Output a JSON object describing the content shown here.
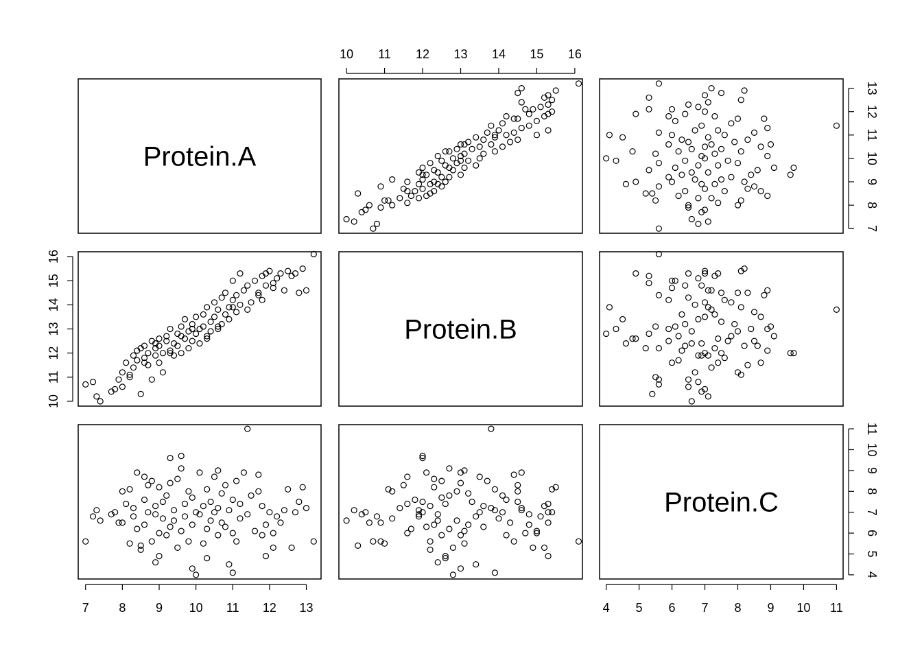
{
  "chart_data": {
    "type": "scatter",
    "variables": [
      "Protein.A",
      "Protein.B",
      "Protein.C"
    ],
    "axes": {
      "Protein.A": {
        "range": [
          6.8,
          13.4
        ],
        "ticks": [
          "7",
          "8",
          "9",
          "10",
          "11",
          "12",
          "13"
        ]
      },
      "Protein.B": {
        "range": [
          9.8,
          16.2
        ],
        "ticks": [
          "10",
          "11",
          "12",
          "13",
          "14",
          "15",
          "16"
        ]
      },
      "Protein.C": {
        "range": [
          3.8,
          11.2
        ],
        "ticks": [
          "4",
          "5",
          "6",
          "7",
          "8",
          "9",
          "10",
          "11"
        ]
      }
    },
    "grid": false,
    "points": [
      [
        7.0,
        10.7,
        5.6
      ],
      [
        7.2,
        10.8,
        6.8
      ],
      [
        7.3,
        10.2,
        7.1
      ],
      [
        7.4,
        10.0,
        6.6
      ],
      [
        7.7,
        10.4,
        6.9
      ],
      [
        7.8,
        10.5,
        7.0
      ],
      [
        7.9,
        10.9,
        6.5
      ],
      [
        8.0,
        11.2,
        8.0
      ],
      [
        8.0,
        10.6,
        6.5
      ],
      [
        8.1,
        11.6,
        7.4
      ],
      [
        8.2,
        11.0,
        5.5
      ],
      [
        8.3,
        11.9,
        6.8
      ],
      [
        8.3,
        11.4,
        7.2
      ],
      [
        8.4,
        12.1,
        8.9
      ],
      [
        8.4,
        11.7,
        6.2
      ],
      [
        8.5,
        10.3,
        5.4
      ],
      [
        8.5,
        12.2,
        5.2
      ],
      [
        8.6,
        11.8,
        7.6
      ],
      [
        8.6,
        12.3,
        6.4
      ],
      [
        8.7,
        11.5,
        8.3
      ],
      [
        8.7,
        12.0,
        7.0
      ],
      [
        8.8,
        10.9,
        5.6
      ],
      [
        8.8,
        12.5,
        8.5
      ],
      [
        8.9,
        11.9,
        6.9
      ],
      [
        8.9,
        12.2,
        7.3
      ],
      [
        9.0,
        12.6,
        4.9
      ],
      [
        9.0,
        11.6,
        6.0
      ],
      [
        9.0,
        12.3,
        8.2
      ],
      [
        9.1,
        12.0,
        7.5
      ],
      [
        9.1,
        11.2,
        6.7
      ],
      [
        9.2,
        12.5,
        5.9
      ],
      [
        9.2,
        12.7,
        7.8
      ],
      [
        9.3,
        12.1,
        6.3
      ],
      [
        9.3,
        13.0,
        8.4
      ],
      [
        9.4,
        12.4,
        6.6
      ],
      [
        9.4,
        11.9,
        7.1
      ],
      [
        9.5,
        12.8,
        5.3
      ],
      [
        9.5,
        12.3,
        8.6
      ],
      [
        9.6,
        13.1,
        6.1
      ],
      [
        9.6,
        12.0,
        9.7
      ],
      [
        9.7,
        12.6,
        7.4
      ],
      [
        9.7,
        13.4,
        6.8
      ],
      [
        9.8,
        12.2,
        5.6
      ],
      [
        9.8,
        12.9,
        8.0
      ],
      [
        9.9,
        13.2,
        6.4
      ],
      [
        9.9,
        12.5,
        7.7
      ],
      [
        10.0,
        13.5,
        7.0
      ],
      [
        10.0,
        12.8,
        4.0
      ],
      [
        10.1,
        13.0,
        8.9
      ],
      [
        10.1,
        12.4,
        6.9
      ],
      [
        10.2,
        13.6,
        7.3
      ],
      [
        10.2,
        13.1,
        5.5
      ],
      [
        10.3,
        12.7,
        6.2
      ],
      [
        10.3,
        13.9,
        8.1
      ],
      [
        10.4,
        13.3,
        7.5
      ],
      [
        10.4,
        12.9,
        6.6
      ],
      [
        10.5,
        14.1,
        7.0
      ],
      [
        10.5,
        13.5,
        8.7
      ],
      [
        10.6,
        13.0,
        5.9
      ],
      [
        10.6,
        13.8,
        7.2
      ],
      [
        10.7,
        14.3,
        6.5
      ],
      [
        10.7,
        13.2,
        7.9
      ],
      [
        10.8,
        13.6,
        6.3
      ],
      [
        10.8,
        14.5,
        8.3
      ],
      [
        10.9,
        13.9,
        7.1
      ],
      [
        10.9,
        13.4,
        4.5
      ],
      [
        11.0,
        14.2,
        7.6
      ],
      [
        11.0,
        15.0,
        6.0
      ],
      [
        11.1,
        13.7,
        8.5
      ],
      [
        11.1,
        14.4,
        5.6
      ],
      [
        11.2,
        14.0,
        6.7
      ],
      [
        11.2,
        15.3,
        7.4
      ],
      [
        11.3,
        14.6,
        8.9
      ],
      [
        11.4,
        13.8,
        11.0
      ],
      [
        11.4,
        14.8,
        6.9
      ],
      [
        11.5,
        14.1,
        7.8
      ],
      [
        11.6,
        15.0,
        6.1
      ],
      [
        11.7,
        14.5,
        8.0
      ],
      [
        11.8,
        14.2,
        5.9
      ],
      [
        11.8,
        15.2,
        7.3
      ],
      [
        11.9,
        14.8,
        6.4
      ],
      [
        12.0,
        15.4,
        7.0
      ],
      [
        12.1,
        14.9,
        5.3
      ],
      [
        12.2,
        15.1,
        6.8
      ],
      [
        12.3,
        15.3,
        6.5
      ],
      [
        12.4,
        14.6,
        7.1
      ],
      [
        12.5,
        15.4,
        8.1
      ],
      [
        12.6,
        15.2,
        5.3
      ],
      [
        12.7,
        15.3,
        7.0
      ],
      [
        12.8,
        14.5,
        7.5
      ],
      [
        12.9,
        15.5,
        8.2
      ],
      [
        13.0,
        14.6,
        7.2
      ],
      [
        13.2,
        16.1,
        5.6
      ],
      [
        8.9,
        12.4,
        4.6
      ],
      [
        9.3,
        12.0,
        9.6
      ],
      [
        9.9,
        13.0,
        4.3
      ],
      [
        10.6,
        13.1,
        9.0
      ],
      [
        11.0,
        13.9,
        4.1
      ],
      [
        9.6,
        12.7,
        9.1
      ],
      [
        10.3,
        12.6,
        4.8
      ],
      [
        8.6,
        11.6,
        8.7
      ],
      [
        11.7,
        14.4,
        8.8
      ],
      [
        11.9,
        15.3,
        4.9
      ],
      [
        8.2,
        11.1,
        8.1
      ],
      [
        12.1,
        14.7,
        6.0
      ]
    ]
  }
}
